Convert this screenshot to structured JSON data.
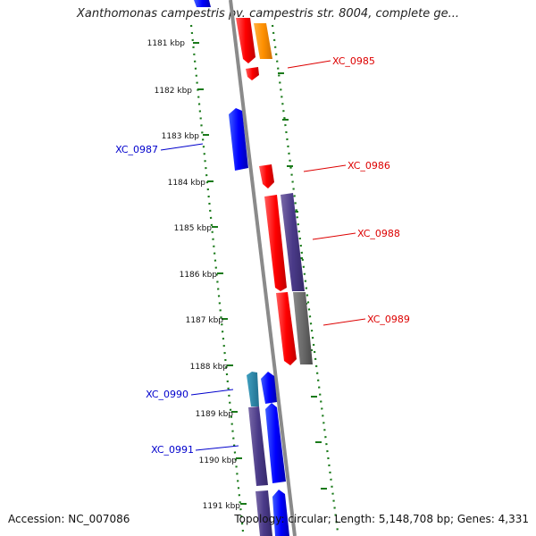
{
  "title": "Xanthomonas campestris pv. campestris str. 8004, complete ge...",
  "footer": {
    "accession": "Accession: NC_007086",
    "summary": "Topology: circular; Length: 5,148,708 bp; Genes: 4,331"
  },
  "map": {
    "kbp_ticks": [
      "1181 kbp",
      "1182 kbp",
      "1183 kbp",
      "1184 kbp",
      "1185 kbp",
      "1186 kbp",
      "1187 kbp",
      "1188 kbp",
      "1189 kbp",
      "1190 kbp",
      "1191 kbp"
    ],
    "gene_labels": [
      {
        "id": "XC_0985",
        "strand": "forward"
      },
      {
        "id": "XC_0986",
        "strand": "forward"
      },
      {
        "id": "XC_0988",
        "strand": "forward"
      },
      {
        "id": "XC_0989",
        "strand": "forward"
      },
      {
        "id": "XC_0987",
        "strand": "reverse"
      },
      {
        "id": "XC_0990",
        "strand": "reverse"
      },
      {
        "id": "XC_0991",
        "strand": "reverse"
      }
    ],
    "colors": {
      "forward_label": "#dd0000",
      "reverse_label": "#0000cc",
      "tick_dots": "#1a7a1a",
      "backbone": "#888888"
    }
  }
}
